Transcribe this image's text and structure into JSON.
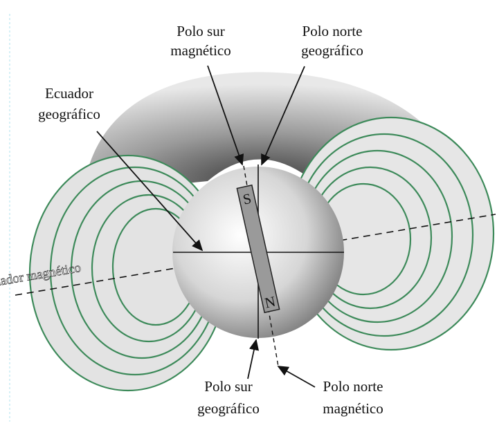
{
  "labels": {
    "south_magnetic_pole": [
      "Polo sur",
      "magnético"
    ],
    "north_geographic_pole": [
      "Polo norte",
      "geográfico"
    ],
    "geographic_equator": [
      "Ecuador",
      "geográfico"
    ],
    "magnetic_equator": "Ecuador magnético",
    "south_geographic_pole": [
      "Polo sur",
      "geográfico"
    ],
    "north_magnetic_pole": [
      "Polo norte",
      "magnético"
    ]
  },
  "magnet": {
    "top": "S",
    "bottom": "N"
  }
}
